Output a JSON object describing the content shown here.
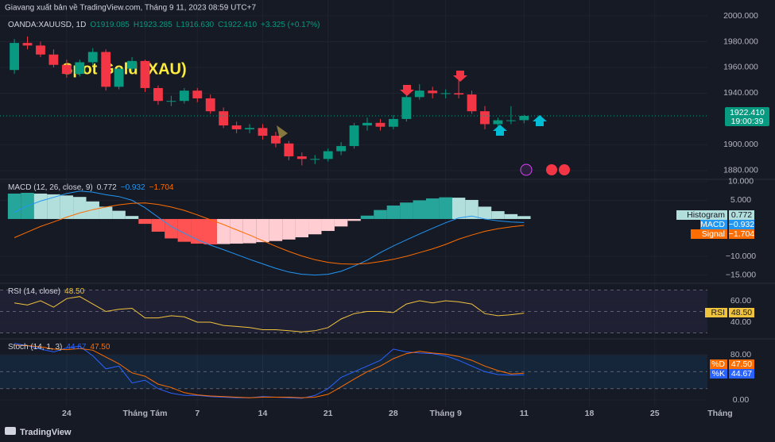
{
  "header": "Giavang xuất bản về TradingView.com, Tháng 9 11, 2023 08:59 UTC+7",
  "footer": "TradingView",
  "chart_data": [
    {
      "type": "candlestick",
      "symbol": "OANDA:XAUUSD, 1D",
      "legend_text": [
        "O1919.085",
        "H1923.285",
        "L1916.630",
        "C1922.410",
        "+3.325 (+0.17%)"
      ],
      "watermark": "Spot Gold (XAU)",
      "up_color": "#089981",
      "down_color": "#f23645",
      "open": [
        1958,
        1979,
        1977,
        1970,
        1962,
        1955,
        1964,
        1972,
        1945,
        1959,
        1965,
        1944,
        1934,
        1934,
        1942,
        1936,
        1926,
        1915,
        1912,
        1913,
        1907,
        1901,
        1891,
        1889,
        1889,
        1895,
        1899,
        1915,
        1917,
        1914,
        1920,
        1937,
        1942,
        1940,
        1940,
        1939,
        1926,
        1916,
        1919,
        1919.085
      ],
      "high": [
        1982,
        1984,
        1980,
        1974,
        1966,
        1966,
        1975,
        1974,
        1960,
        1968,
        1966,
        1946,
        1938,
        1944,
        1944,
        1939,
        1929,
        1918,
        1916,
        1916,
        1910,
        1903,
        1894,
        1892,
        1897,
        1902,
        1917,
        1921,
        1920,
        1923,
        1940,
        1947,
        1945,
        1943,
        1952,
        1942,
        1930,
        1921,
        1930,
        1923.285
      ],
      "low": [
        1955,
        1974,
        1968,
        1960,
        1952,
        1953,
        1962,
        1942,
        1943,
        1957,
        1941,
        1931,
        1930,
        1932,
        1933,
        1924,
        1913,
        1909,
        1909,
        1904,
        1898,
        1888,
        1884,
        1885,
        1887,
        1892,
        1897,
        1911,
        1911,
        1912,
        1918,
        1935,
        1936,
        1936,
        1936,
        1924,
        1912,
        1913,
        1916,
        1916.63
      ],
      "close": [
        1979,
        1977,
        1970,
        1962,
        1955,
        1964,
        1972,
        1945,
        1959,
        1965,
        1944,
        1934,
        1934,
        1942,
        1936,
        1926,
        1915,
        1912,
        1913,
        1907,
        1901,
        1891,
        1889,
        1889,
        1895,
        1899,
        1915,
        1917,
        1914,
        1920,
        1937,
        1942,
        1940,
        1940,
        1939,
        1926,
        1916,
        1919,
        1919,
        1922.41
      ],
      "last_price_label": "1922.410",
      "countdown": "19:00:39",
      "ylim": [
        1873.8,
        2012.3
      ],
      "yticks": [
        {
          "value": 2000,
          "label": "2000.000"
        },
        {
          "value": 1980,
          "label": "1980.000"
        },
        {
          "value": 1960,
          "label": "1960.000"
        },
        {
          "value": 1940,
          "label": "1940.000"
        },
        {
          "value": 1900,
          "label": "1900.000"
        },
        {
          "value": 1880,
          "label": "1880.000"
        }
      ],
      "xlim": [
        -1.1,
        58.2
      ],
      "xticks": [
        {
          "value": 4,
          "label": "24"
        },
        {
          "value": 10,
          "label": "Tháng Tám"
        },
        {
          "value": 14,
          "label": "7"
        },
        {
          "value": 19,
          "label": "14"
        },
        {
          "value": 24,
          "label": "21"
        },
        {
          "value": 29,
          "label": "28"
        },
        {
          "value": 33,
          "label": "Tháng 9"
        },
        {
          "value": 39,
          "label": "11"
        },
        {
          "value": 44,
          "label": "18"
        },
        {
          "value": 49,
          "label": "25"
        },
        {
          "value": 54,
          "label": "Tháng"
        }
      ]
    },
    {
      "type": "macd",
      "title": "MACD (12, 26, close, 9)",
      "series": [
        {
          "name": "Histogram",
          "kind": "histogram",
          "colors": [
            "#26a69a",
            "#b2dfdb",
            "#ff5252",
            "#ffcdd2"
          ],
          "color": "#b2dfdb",
          "value_label": "0.772",
          "values": [
            6.8,
            7.0,
            6.8,
            6.6,
            6.3,
            5.9,
            4.7,
            3.3,
            2.2,
            0.8,
            -1.3,
            -3.4,
            -5.2,
            -6.1,
            -6.6,
            -6.8,
            -6.7,
            -6.6,
            -6.5,
            -6.2,
            -5.9,
            -5.5,
            -4.9,
            -4.1,
            -3.2,
            -2.0,
            -0.5,
            0.9,
            2.4,
            3.6,
            4.4,
            5.0,
            5.5,
            5.8,
            5.7,
            5.1,
            3.3,
            2.1,
            1.3,
            0.772
          ]
        },
        {
          "name": "MACD",
          "kind": "line",
          "color": "#2196f3",
          "value_label": "−0.932",
          "values": [
            1.8,
            3.5,
            4.8,
            5.8,
            6.8,
            7.5,
            7.2,
            6.5,
            6.0,
            5.0,
            3.0,
            0.5,
            -2.0,
            -3.8,
            -5.5,
            -7.0,
            -8.2,
            -9.5,
            -10.8,
            -12.0,
            -13.2,
            -14.2,
            -14.8,
            -15.0,
            -14.8,
            -14.0,
            -12.6,
            -11.0,
            -9.0,
            -7.2,
            -5.6,
            -4.0,
            -2.5,
            -1.0,
            0.3,
            0.8,
            0.0,
            -0.5,
            -0.8,
            -0.932
          ]
        },
        {
          "name": "Signal",
          "kind": "line",
          "color": "#ff6d00",
          "value_label": "−1.704",
          "values": [
            -5,
            -3.5,
            -2,
            -0.8,
            0.5,
            1.6,
            2.5,
            3.2,
            3.8,
            4.2,
            4.3,
            3.9,
            3.2,
            2.3,
            1.1,
            -0.2,
            -1.5,
            -2.9,
            -4.3,
            -5.8,
            -7.3,
            -8.7,
            -9.9,
            -10.9,
            -11.6,
            -12.0,
            -12.1,
            -11.9,
            -11.4,
            -10.8,
            -10.0,
            -9.0,
            -8.0,
            -6.8,
            -5.4,
            -4.3,
            -3.3,
            -2.6,
            -2.1,
            -1.704
          ]
        }
      ],
      "ylim": [
        -17,
        10.4
      ],
      "yticks": [
        {
          "value": 10,
          "label": "10.000"
        },
        {
          "value": 5,
          "label": "5.000"
        },
        {
          "value": -10,
          "label": "−10.000"
        },
        {
          "value": -15,
          "label": "−15.000"
        }
      ]
    },
    {
      "type": "rsi",
      "title": "RSI (14, close)",
      "band_color": "#7e57c2",
      "bands": [
        70,
        50,
        30
      ],
      "series": [
        {
          "name": "RSI",
          "kind": "line",
          "color": "#f0c33c",
          "value_label": "48.50",
          "values": [
            58,
            56,
            60,
            54,
            62,
            64,
            57,
            50,
            52,
            53,
            44,
            44,
            46,
            45,
            40,
            40,
            37,
            36,
            35,
            33,
            33,
            32,
            31,
            32,
            35,
            43,
            48,
            50,
            50,
            49,
            57,
            60,
            58,
            60,
            59,
            57,
            48,
            46,
            47,
            48.5
          ]
        }
      ],
      "ylim": [
        25.2,
        75.6
      ],
      "yticks": [
        {
          "value": 60,
          "label": "60.00"
        },
        {
          "value": 40,
          "label": "40.00"
        }
      ]
    },
    {
      "type": "stoch",
      "title": "Stoch (14, 1, 3)",
      "band_color": "#2196f3",
      "bands": [
        80,
        50,
        20
      ],
      "series": [
        {
          "name": "%K",
          "kind": "line",
          "color": "#2962ff",
          "value_label": "44.67",
          "values": [
            100,
            96,
            90,
            85,
            92,
            95,
            78,
            55,
            60,
            30,
            35,
            20,
            12,
            8,
            8,
            6,
            5,
            4,
            4,
            6,
            5,
            4,
            3,
            8,
            20,
            40,
            50,
            60,
            70,
            90,
            85,
            83,
            82,
            78,
            70,
            60,
            50,
            45,
            44,
            44.67
          ]
        },
        {
          "name": "%D",
          "kind": "line",
          "color": "#ff6d00",
          "value_label": "47.50",
          "values": [
            97,
            96,
            94,
            90,
            89,
            91,
            88,
            76,
            64,
            48,
            42,
            28,
            22,
            13,
            9,
            7,
            6,
            5,
            4,
            5,
            5,
            5,
            4,
            5,
            10,
            23,
            37,
            50,
            60,
            73,
            82,
            86,
            83,
            81,
            77,
            70,
            60,
            52,
            46,
            47.5
          ]
        }
      ],
      "ylim": [
        -11.2,
        106.7
      ],
      "yticks": [
        {
          "value": 80,
          "label": "80.00"
        },
        {
          "value": 0,
          "label": "0.00"
        }
      ]
    }
  ]
}
